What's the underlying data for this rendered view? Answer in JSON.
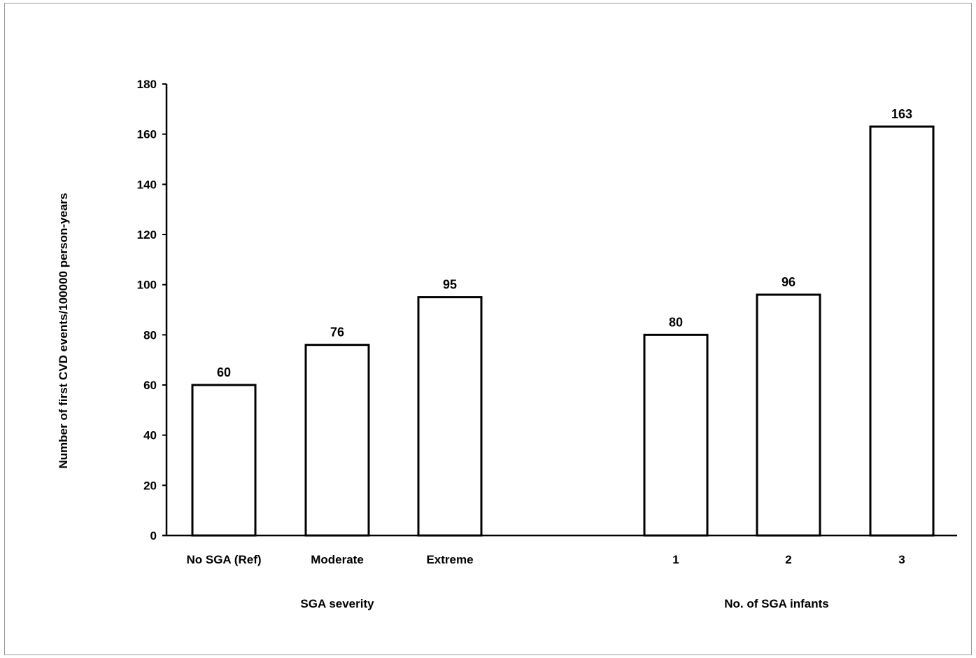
{
  "chart_data": {
    "type": "bar",
    "ylabel": "Number of first CVD events/100000 person-years",
    "ylim": [
      0,
      180
    ],
    "yticks": [
      0,
      20,
      40,
      60,
      80,
      100,
      120,
      140,
      160,
      180
    ],
    "grid": false,
    "legend": "none",
    "bar_fill": "#ffffff",
    "bar_stroke": "#000000",
    "groups": [
      {
        "label": "SGA severity",
        "categories": [
          "No SGA (Ref)",
          "Moderate",
          "Extreme"
        ],
        "values": [
          60,
          76,
          95
        ]
      },
      {
        "label": "No. of SGA infants",
        "categories": [
          "1",
          "2",
          "3"
        ],
        "values": [
          80,
          96,
          163
        ]
      }
    ]
  }
}
